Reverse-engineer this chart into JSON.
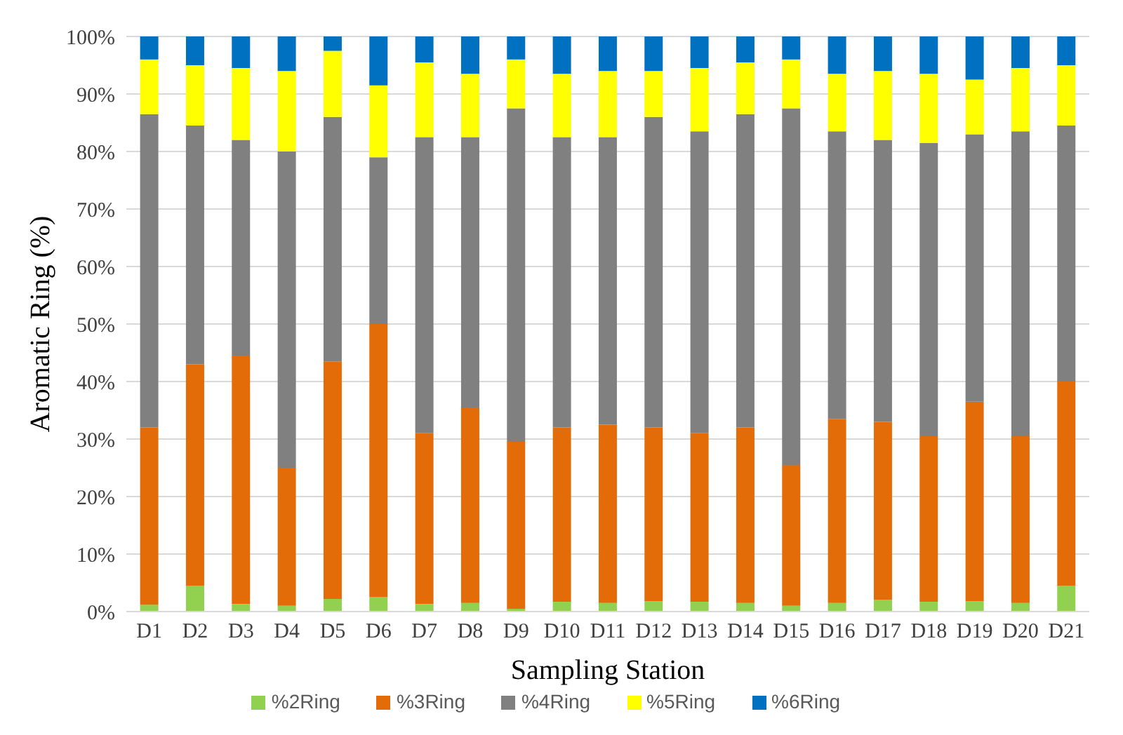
{
  "chart_data": {
    "type": "bar",
    "stacked": true,
    "xlabel": "Sampling Station",
    "ylabel": "Aromatic Ring (%)",
    "categories": [
      "D1",
      "D2",
      "D3",
      "D4",
      "D5",
      "D6",
      "D7",
      "D8",
      "D9",
      "D10",
      "D11",
      "D12",
      "D13",
      "D14",
      "D15",
      "D16",
      "D17",
      "D18",
      "D19",
      "D20",
      "D21"
    ],
    "series": [
      {
        "name": "%2Ring",
        "color": "#92d050",
        "values": [
          1.2,
          4.5,
          1.3,
          1,
          2.2,
          2.5,
          1.3,
          1.5,
          0.5,
          1.7,
          1.5,
          1.8,
          1.7,
          1.5,
          1,
          1.5,
          2,
          1.7,
          1.8,
          1.5,
          4.5
        ]
      },
      {
        "name": "%3Ring",
        "color": "#e36c09",
        "values": [
          30.8,
          38.5,
          43.2,
          24,
          41.3,
          47.5,
          29.7,
          34,
          29,
          30.3,
          31,
          30.2,
          29.3,
          30.5,
          24.5,
          32,
          31,
          28.8,
          34.7,
          29,
          35.5
        ]
      },
      {
        "name": "%4Ring",
        "color": "#808080",
        "values": [
          54.5,
          41.5,
          37.5,
          55,
          42.5,
          29,
          51.5,
          47,
          58,
          50.5,
          50,
          54,
          52.5,
          54.5,
          62,
          50,
          49,
          51,
          46.5,
          53,
          44.5
        ]
      },
      {
        "name": "%5Ring",
        "color": "#ffff00",
        "values": [
          9.5,
          10.5,
          12.5,
          14,
          11.5,
          12.5,
          13,
          11,
          8.5,
          11,
          11.5,
          8,
          11,
          9,
          8.5,
          10,
          12,
          12,
          9.5,
          11,
          10.5
        ]
      },
      {
        "name": "%6Ring",
        "color": "#0070c0",
        "values": [
          4,
          5,
          5.5,
          6,
          2.5,
          8.5,
          4.5,
          6.5,
          4,
          6.5,
          6,
          6,
          5.5,
          4.5,
          4,
          6.5,
          6,
          6.5,
          7.5,
          5.5,
          5
        ]
      }
    ],
    "ylim": [
      0,
      100
    ],
    "yticks": [
      {
        "value": 0,
        "label": "0%"
      },
      {
        "value": 10,
        "label": "10%"
      },
      {
        "value": 20,
        "label": "20%"
      },
      {
        "value": 30,
        "label": "30%"
      },
      {
        "value": 40,
        "label": "40%"
      },
      {
        "value": 50,
        "label": "50%"
      },
      {
        "value": 60,
        "label": "60%"
      },
      {
        "value": 70,
        "label": "70%"
      },
      {
        "value": 80,
        "label": "80%"
      },
      {
        "value": 90,
        "label": "90%"
      },
      {
        "value": 100,
        "label": "100%"
      }
    ],
    "grid": "y",
    "legend": "bottom"
  }
}
